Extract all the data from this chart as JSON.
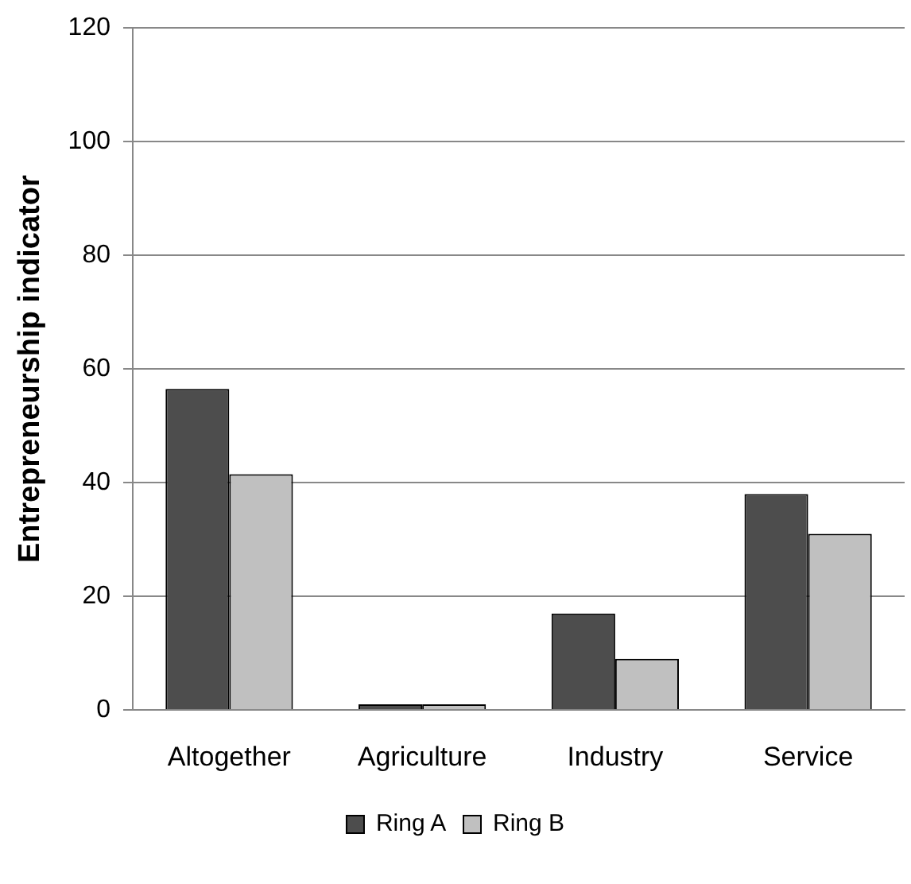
{
  "chart_data": {
    "type": "bar",
    "ylabel": "Entrepreneurship indicator",
    "categories": [
      "Altogether",
      "Agriculture",
      "Industry",
      "Service"
    ],
    "series": [
      {
        "name": "Ring A",
        "color": "#4d4d4d",
        "values": [
          56.5,
          1,
          17,
          38
        ]
      },
      {
        "name": "Ring B",
        "color": "#c0c0c0",
        "values": [
          41.5,
          1,
          9,
          31
        ]
      }
    ],
    "ylim": [
      0,
      120
    ],
    "yticks": [
      0,
      20,
      40,
      60,
      80,
      100,
      120
    ],
    "grid": "y",
    "legend": "bottom"
  }
}
